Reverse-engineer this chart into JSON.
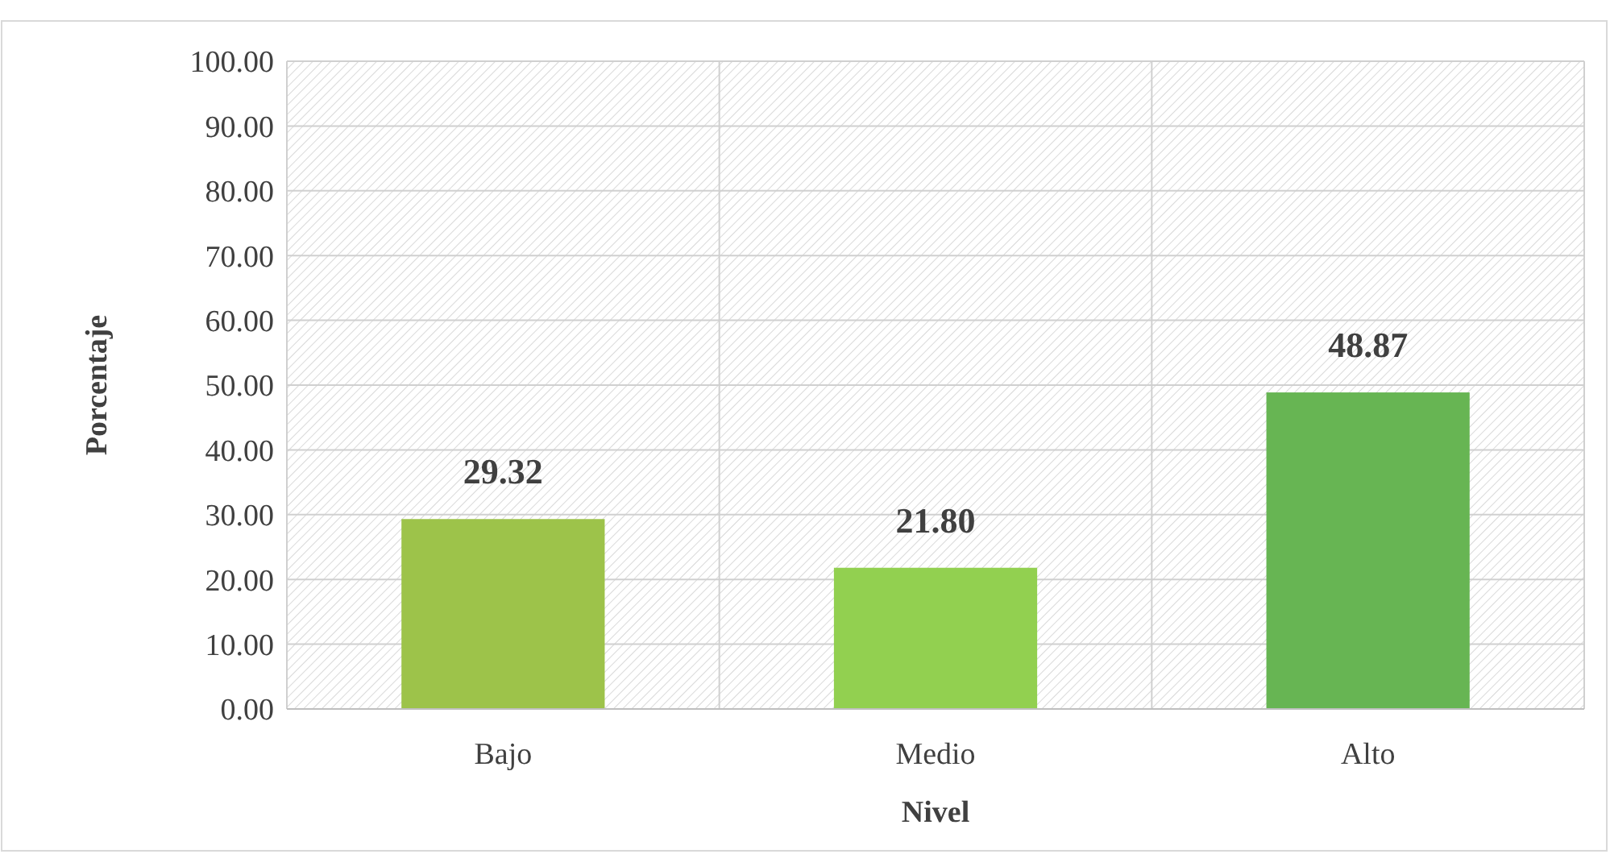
{
  "chart_data": {
    "type": "bar",
    "xlabel": "Nivel",
    "ylabel": "Porcentaje",
    "categories": [
      "Bajo",
      "Medio",
      "Alto"
    ],
    "values": [
      29.32,
      21.8,
      48.87
    ],
    "colors": [
      "#9dc34a",
      "#92d050",
      "#67b553"
    ],
    "value_labels": [
      "29.32",
      "21.80",
      "48.87"
    ],
    "ylim": [
      0,
      100
    ],
    "yticks": [
      {
        "value": 0,
        "label": "0.00"
      },
      {
        "value": 10,
        "label": "10.00"
      },
      {
        "value": 20,
        "label": "20.00"
      },
      {
        "value": 30,
        "label": "30.00"
      },
      {
        "value": 40,
        "label": "40.00"
      },
      {
        "value": 50,
        "label": "50.00"
      },
      {
        "value": 60,
        "label": "60.00"
      },
      {
        "value": 70,
        "label": "70.00"
      },
      {
        "value": 80,
        "label": "80.00"
      },
      {
        "value": 90,
        "label": "90.00"
      },
      {
        "value": 100,
        "label": "100.00"
      }
    ],
    "grid": true
  }
}
